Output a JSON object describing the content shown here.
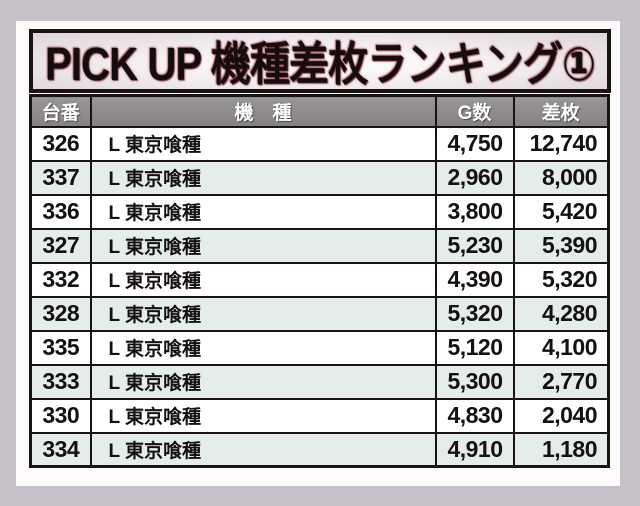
{
  "title": "PICK UP 機種差枚ランキング①",
  "colors": {
    "page_background": "#c8c0c9",
    "panel_background": "#fefbfc",
    "banner_border": "#1b1214",
    "banner_background_edge": "#dcd5db",
    "title_text": "#140d0e",
    "title_glow": "#7a1422",
    "header_background": "#8c8a8b",
    "header_text": "#ffffff",
    "row_background": "#ffffff",
    "row_alt_background": "#e4ede7",
    "grid_border": "#1b1214",
    "cell_text": "#151011"
  },
  "chart_data": {
    "type": "table",
    "title": "PICK UP 機種差枚ランキング①",
    "columns": [
      "台番",
      "機　種",
      "G数",
      "差枚"
    ],
    "rows": [
      [
        "326",
        "L 東京喰種",
        "4,750",
        "12,740"
      ],
      [
        "337",
        "L 東京喰種",
        "2,960",
        "8,000"
      ],
      [
        "336",
        "L 東京喰種",
        "3,800",
        "5,420"
      ],
      [
        "327",
        "L 東京喰種",
        "5,230",
        "5,390"
      ],
      [
        "332",
        "L 東京喰種",
        "4,390",
        "5,320"
      ],
      [
        "328",
        "L 東京喰種",
        "5,320",
        "4,280"
      ],
      [
        "335",
        "L 東京喰種",
        "5,120",
        "4,100"
      ],
      [
        "333",
        "L 東京喰種",
        "5,300",
        "2,770"
      ],
      [
        "330",
        "L 東京喰種",
        "4,830",
        "2,040"
      ],
      [
        "334",
        "L 東京喰種",
        "4,910",
        "1,180"
      ]
    ]
  }
}
